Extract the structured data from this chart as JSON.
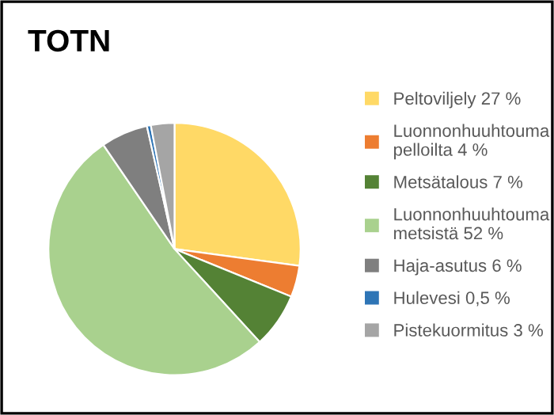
{
  "chart_data": {
    "type": "pie",
    "title": "TOTN",
    "categories": [
      "Peltoviljely 27 %",
      "Luonnonhuuhtouma\npelloilta 4 %",
      "Metsätalous 7 %",
      "Luonnonhuuhtouma\nmetsistä 52 %",
      "Haja-asutus 6 %",
      "Hulevesi 0,5 %",
      "Pistekuormitus 3 %"
    ],
    "values": [
      27,
      4,
      7,
      52,
      6,
      0.5,
      3
    ],
    "colors": [
      "#ffd966",
      "#ed7d31",
      "#548235",
      "#a9d18e",
      "#7f7f7f",
      "#2e75b6",
      "#a5a5a5"
    ],
    "legend": "right"
  }
}
